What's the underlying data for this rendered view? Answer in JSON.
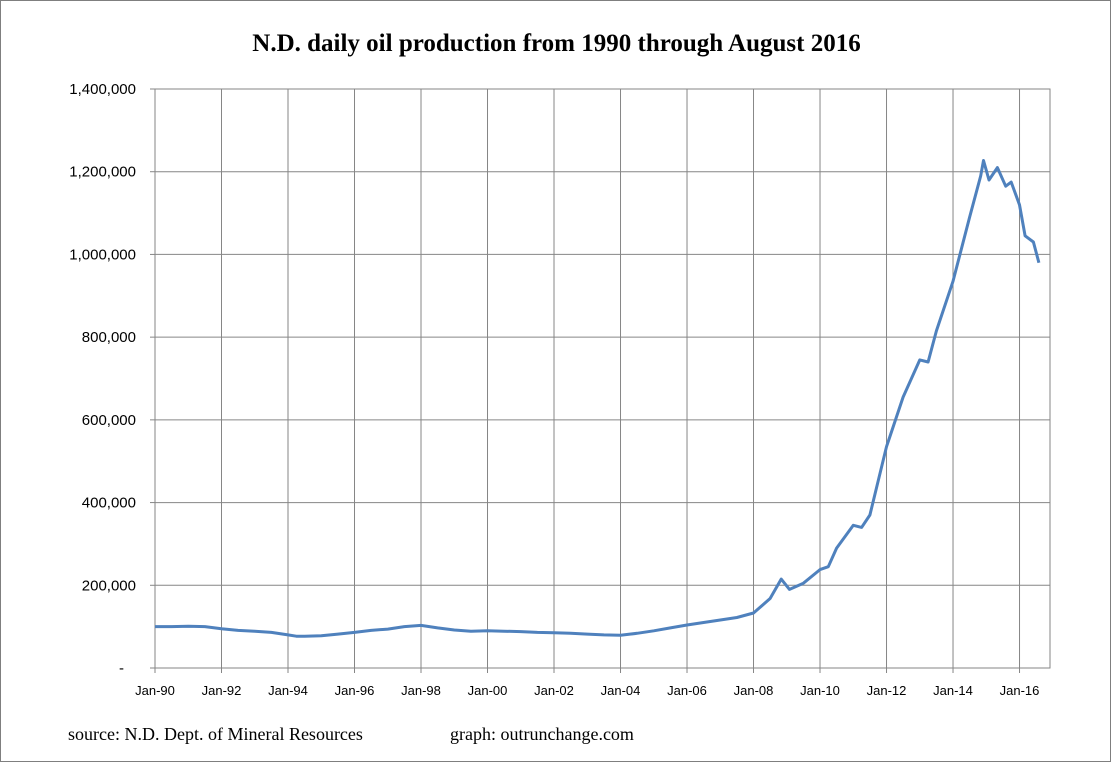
{
  "chart_data": {
    "type": "line",
    "title": "N.D. daily oil production from 1990 through August 2016",
    "xlabel": "",
    "ylabel": "",
    "x_range": [
      "1990-01",
      "2016-08"
    ],
    "ylim": [
      0,
      1400000
    ],
    "ytick_labels": [
      "-",
      "200,000",
      "400,000",
      "600,000",
      "800,000",
      "1,000,000",
      "1,200,000",
      "1,400,000"
    ],
    "ytick_values": [
      0,
      200000,
      400000,
      600000,
      800000,
      1000000,
      1200000,
      1400000
    ],
    "xtick_labels": [
      "Jan-90",
      "Jan-92",
      "Jan-94",
      "Jan-96",
      "Jan-98",
      "Jan-00",
      "Jan-02",
      "Jan-04",
      "Jan-06",
      "Jan-08",
      "Jan-10",
      "Jan-12",
      "Jan-14",
      "Jan-16"
    ],
    "xtick_dates": [
      "1990-01",
      "1992-01",
      "1994-01",
      "1996-01",
      "1998-01",
      "2000-01",
      "2002-01",
      "2004-01",
      "2006-01",
      "2008-01",
      "2010-01",
      "2012-01",
      "2014-01",
      "2016-01"
    ],
    "grid": true,
    "series": [
      {
        "color": "#4f81bd",
        "points": [
          [
            "1990-01",
            100000
          ],
          [
            "1990-07",
            100000
          ],
          [
            "1991-01",
            101000
          ],
          [
            "1991-07",
            100000
          ],
          [
            "1992-01",
            95000
          ],
          [
            "1992-07",
            91000
          ],
          [
            "1993-01",
            89000
          ],
          [
            "1993-07",
            86000
          ],
          [
            "1994-01",
            80000
          ],
          [
            "1994-04",
            77000
          ],
          [
            "1994-07",
            77000
          ],
          [
            "1995-01",
            78000
          ],
          [
            "1995-07",
            82000
          ],
          [
            "1996-01",
            86000
          ],
          [
            "1996-07",
            91000
          ],
          [
            "1997-01",
            94000
          ],
          [
            "1997-07",
            100000
          ],
          [
            "1998-01",
            103000
          ],
          [
            "1998-07",
            97000
          ],
          [
            "1999-01",
            92000
          ],
          [
            "1999-07",
            89000
          ],
          [
            "2000-01",
            90000
          ],
          [
            "2000-07",
            89000
          ],
          [
            "2001-01",
            88000
          ],
          [
            "2001-07",
            86000
          ],
          [
            "2002-01",
            85000
          ],
          [
            "2002-07",
            84000
          ],
          [
            "2003-01",
            82000
          ],
          [
            "2003-07",
            80000
          ],
          [
            "2004-01",
            79000
          ],
          [
            "2004-07",
            84000
          ],
          [
            "2005-01",
            90000
          ],
          [
            "2005-07",
            97000
          ],
          [
            "2006-01",
            104000
          ],
          [
            "2006-07",
            110000
          ],
          [
            "2007-01",
            116000
          ],
          [
            "2007-07",
            122000
          ],
          [
            "2008-01",
            133000
          ],
          [
            "2008-07",
            168000
          ],
          [
            "2008-11",
            215000
          ],
          [
            "2009-02",
            190000
          ],
          [
            "2009-07",
            205000
          ],
          [
            "2010-01",
            238000
          ],
          [
            "2010-04",
            245000
          ],
          [
            "2010-07",
            290000
          ],
          [
            "2011-01",
            345000
          ],
          [
            "2011-04",
            340000
          ],
          [
            "2011-07",
            370000
          ],
          [
            "2012-01",
            535000
          ],
          [
            "2012-07",
            655000
          ],
          [
            "2013-01",
            745000
          ],
          [
            "2013-04",
            740000
          ],
          [
            "2013-07",
            815000
          ],
          [
            "2014-01",
            935000
          ],
          [
            "2014-07",
            1090000
          ],
          [
            "2014-11",
            1190000
          ],
          [
            "2014-12",
            1227000
          ],
          [
            "2015-02",
            1180000
          ],
          [
            "2015-05",
            1210000
          ],
          [
            "2015-08",
            1165000
          ],
          [
            "2015-10",
            1175000
          ],
          [
            "2016-01",
            1120000
          ],
          [
            "2016-03",
            1045000
          ],
          [
            "2016-06",
            1030000
          ],
          [
            "2016-08",
            980000
          ]
        ]
      }
    ]
  },
  "footer": {
    "source": "source: N.D. Dept. of Mineral Resources",
    "graph": "graph:  outrunchange.com"
  }
}
